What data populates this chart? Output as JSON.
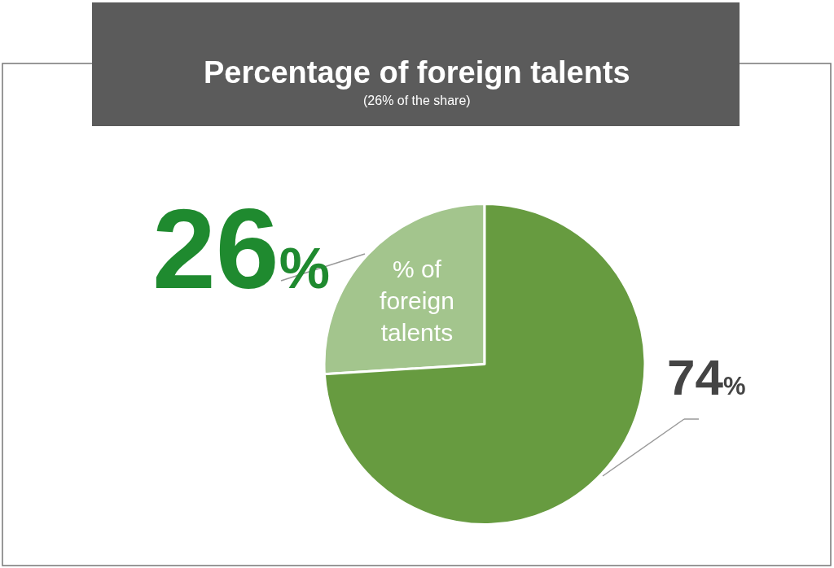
{
  "chart_data": {
    "type": "pie",
    "title": "Percentage of foreign talents",
    "subtitle": "(26% of the share)",
    "categories": [
      "% of foreign talents",
      null
    ],
    "values": [
      26,
      74
    ],
    "colors": [
      "#a3c58d",
      "#679b40"
    ],
    "value_labels": [
      "26%",
      "74%"
    ],
    "legend": false
  }
}
